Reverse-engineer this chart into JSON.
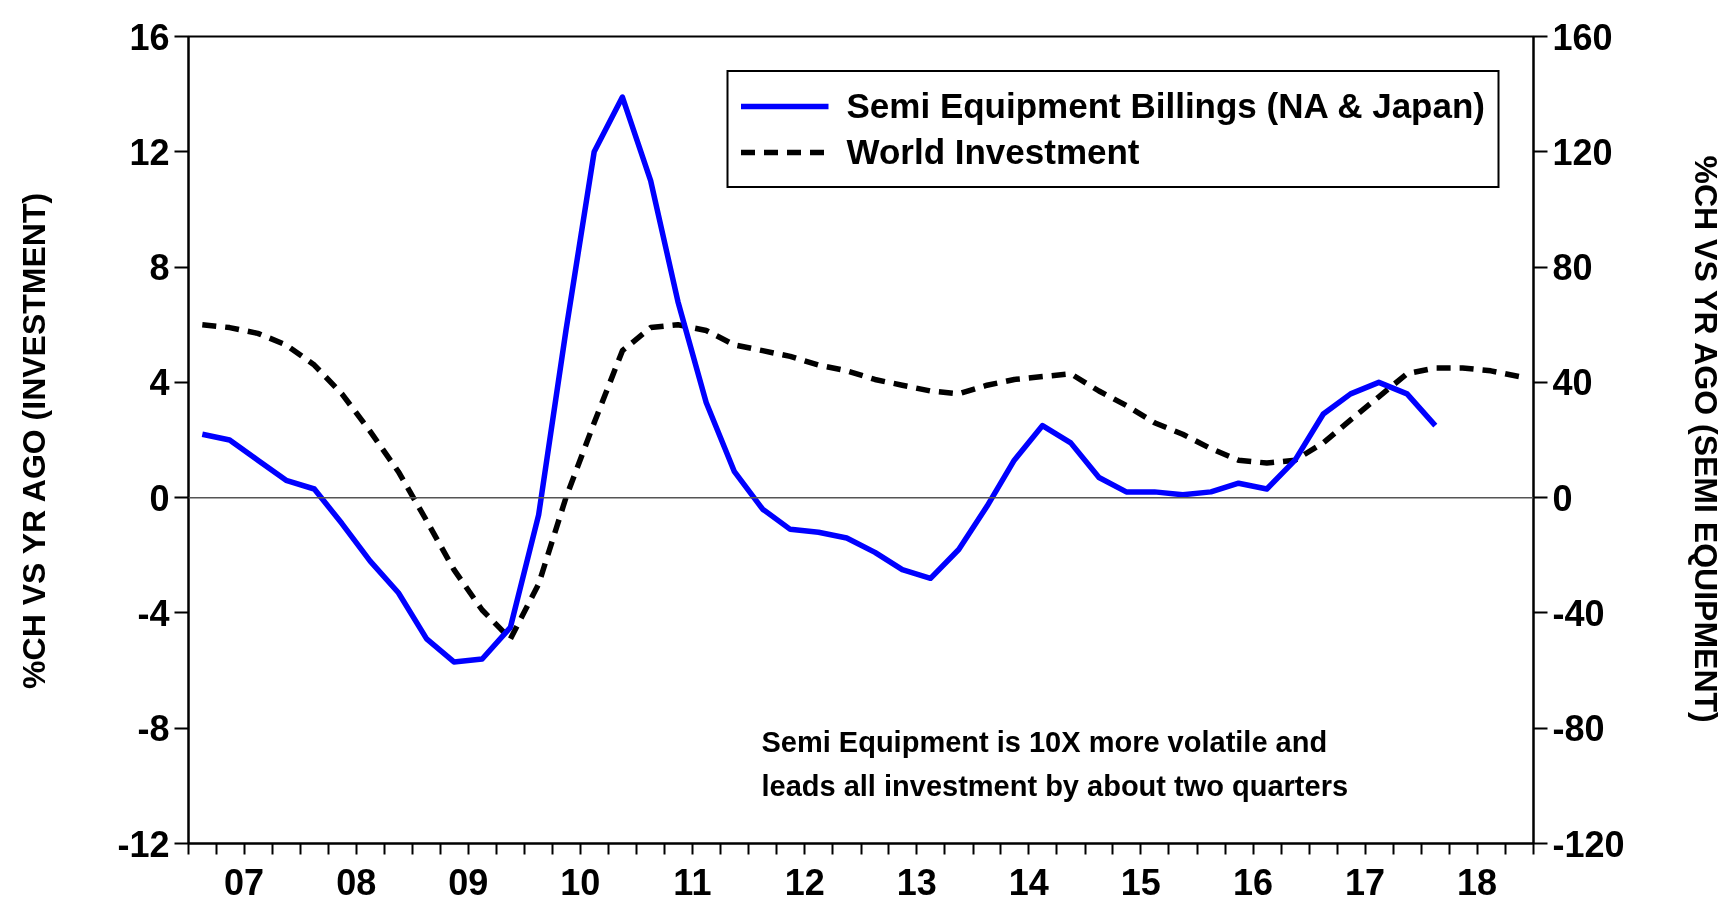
{
  "chart_data": {
    "type": "line",
    "x": [
      "2007-02-15",
      "2007-05-15",
      "2007-08-15",
      "2007-11-15",
      "2008-02-15",
      "2008-05-15",
      "2008-08-15",
      "2008-11-15",
      "2009-02-15",
      "2009-05-15",
      "2009-08-15",
      "2009-11-15",
      "2010-02-15",
      "2010-05-15",
      "2010-08-15",
      "2010-11-15",
      "2011-02-15",
      "2011-05-15",
      "2011-08-15",
      "2011-11-15",
      "2012-02-15",
      "2012-05-15",
      "2012-08-15",
      "2012-11-15",
      "2013-02-15",
      "2013-05-15",
      "2013-08-15",
      "2013-11-15",
      "2014-02-15",
      "2014-05-15",
      "2014-08-15",
      "2014-11-15",
      "2015-02-15",
      "2015-05-15",
      "2015-08-15",
      "2015-11-15",
      "2016-02-15",
      "2016-05-15",
      "2016-08-15",
      "2016-11-15",
      "2017-02-15",
      "2017-05-15",
      "2017-08-15",
      "2017-11-15",
      "2018-02-15",
      "2018-05-15",
      "2018-08-15",
      "2018-11-15"
    ],
    "series": [
      {
        "name": "Semi Equipment Billings (NA & Japan)",
        "color": "#0000ff",
        "axis": "y2",
        "line_style": "solid",
        "values": [
          22,
          20,
          13,
          6,
          3,
          -9,
          -22,
          -33,
          -49,
          -57,
          -56,
          -45,
          -6,
          58,
          120,
          139,
          110,
          68,
          33,
          9,
          -4,
          -11,
          -12,
          -14,
          -19,
          -25,
          -28,
          -18,
          -3,
          13,
          25,
          19,
          7,
          2,
          2,
          1,
          2,
          5,
          3,
          13,
          29,
          36,
          40,
          36,
          25,
          null,
          null,
          null
        ]
      },
      {
        "name": "World Investment",
        "color": "#000000",
        "line_style": "dashed",
        "values": [
          6.0,
          5.9,
          5.7,
          5.3,
          4.6,
          3.6,
          2.3,
          0.9,
          -0.8,
          -2.5,
          -3.9,
          -4.9,
          -3.0,
          0.0,
          2.6,
          5.1,
          5.9,
          6.0,
          5.8,
          5.3,
          5.1,
          4.9,
          4.6,
          4.4,
          4.1,
          3.9,
          3.7,
          3.6,
          3.9,
          4.1,
          4.2,
          4.3,
          3.7,
          3.2,
          2.6,
          2.2,
          1.7,
          1.3,
          1.2,
          1.3,
          1.9,
          2.7,
          3.5,
          4.3,
          4.5,
          4.5,
          4.4,
          4.2
        ]
      }
    ],
    "xlim": [
      "2007-01-01",
      "2019-01-01"
    ],
    "xticks": [
      {
        "value": "2007-01-01",
        "label": null
      },
      {
        "value": "2007-04-01",
        "label": null
      },
      {
        "value": "2007-07-01",
        "label": "07"
      },
      {
        "value": "2007-10-01",
        "label": null
      },
      {
        "value": "2008-01-01",
        "label": null
      },
      {
        "value": "2008-04-01",
        "label": null
      },
      {
        "value": "2008-07-01",
        "label": "08"
      },
      {
        "value": "2008-10-01",
        "label": null
      },
      {
        "value": "2009-01-01",
        "label": null
      },
      {
        "value": "2009-04-01",
        "label": null
      },
      {
        "value": "2009-07-01",
        "label": "09"
      },
      {
        "value": "2009-10-01",
        "label": null
      },
      {
        "value": "2010-01-01",
        "label": null
      },
      {
        "value": "2010-04-01",
        "label": null
      },
      {
        "value": "2010-07-01",
        "label": "10"
      },
      {
        "value": "2010-10-01",
        "label": null
      },
      {
        "value": "2011-01-01",
        "label": null
      },
      {
        "value": "2011-04-01",
        "label": null
      },
      {
        "value": "2011-07-01",
        "label": "11"
      },
      {
        "value": "2011-10-01",
        "label": null
      },
      {
        "value": "2012-01-01",
        "label": null
      },
      {
        "value": "2012-04-01",
        "label": null
      },
      {
        "value": "2012-07-01",
        "label": "12"
      },
      {
        "value": "2012-10-01",
        "label": null
      },
      {
        "value": "2013-01-01",
        "label": null
      },
      {
        "value": "2013-04-01",
        "label": null
      },
      {
        "value": "2013-07-01",
        "label": "13"
      },
      {
        "value": "2013-10-01",
        "label": null
      },
      {
        "value": "2014-01-01",
        "label": null
      },
      {
        "value": "2014-04-01",
        "label": null
      },
      {
        "value": "2014-07-01",
        "label": "14"
      },
      {
        "value": "2014-10-01",
        "label": null
      },
      {
        "value": "2015-01-01",
        "label": null
      },
      {
        "value": "2015-04-01",
        "label": null
      },
      {
        "value": "2015-07-01",
        "label": "15"
      },
      {
        "value": "2015-10-01",
        "label": null
      },
      {
        "value": "2016-01-01",
        "label": null
      },
      {
        "value": "2016-04-01",
        "label": null
      },
      {
        "value": "2016-07-01",
        "label": "16"
      },
      {
        "value": "2016-10-01",
        "label": null
      },
      {
        "value": "2017-01-01",
        "label": null
      },
      {
        "value": "2017-04-01",
        "label": null
      },
      {
        "value": "2017-07-01",
        "label": "17"
      },
      {
        "value": "2017-10-01",
        "label": null
      },
      {
        "value": "2018-01-01",
        "label": null
      },
      {
        "value": "2018-04-01",
        "label": null
      },
      {
        "value": "2018-07-01",
        "label": "18"
      },
      {
        "value": "2018-10-01",
        "label": null
      },
      {
        "value": "2019-01-01",
        "label": null
      }
    ],
    "ylabel": "%CH VS YR AGO (INVESTMENT)",
    "ylim": [
      -12,
      16
    ],
    "yticks": [
      -12,
      -8,
      -4,
      0,
      4,
      8,
      12,
      16
    ],
    "y2label": "%CH VS YR AGO (SEMI EQUIPMENT)",
    "y2lim": [
      -120,
      160
    ],
    "y2ticks": [
      -120,
      -80,
      -40,
      0,
      40,
      80,
      120,
      160
    ],
    "ref_lines": [
      {
        "axis": "y",
        "value": 0,
        "color": "#555555"
      }
    ],
    "legend": "top right",
    "annotations": [
      "Semi Equipment is 10X more volatile and\nleads all investment by about two quarters"
    ]
  }
}
